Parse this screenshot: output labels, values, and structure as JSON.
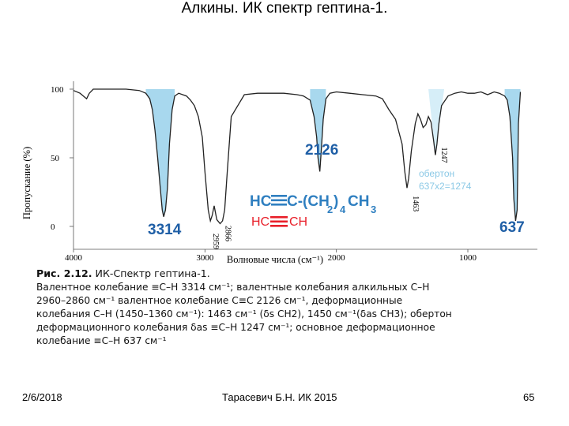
{
  "slide": {
    "title": "Алкины. ИК спектр гептина-1."
  },
  "chart_data": {
    "type": "line",
    "ylabel": "Пропускание (%)",
    "xlabel": "Волновые числа (см⁻¹)",
    "xlim": [
      4000,
      600
    ],
    "ylim": [
      0,
      100
    ],
    "x_ticks": [
      "4000",
      "3000",
      "2000",
      "1000"
    ],
    "y_ticks": [
      "100",
      "50",
      "0"
    ],
    "series": [
      {
        "x": [
          4000,
          3950,
          3900,
          3880,
          3850,
          3800,
          3700,
          3600,
          3500,
          3450,
          3420,
          3400,
          3380,
          3360,
          3340,
          3325,
          3314,
          3300,
          3285,
          3270,
          3250,
          3230,
          3200,
          3170,
          3140,
          3110,
          3080,
          3050,
          3020,
          3000,
          2975,
          2959,
          2945,
          2930,
          2910,
          2885,
          2866,
          2850,
          2830,
          2800,
          2700,
          2600,
          2500,
          2400,
          2300,
          2250,
          2200,
          2170,
          2150,
          2140,
          2126,
          2115,
          2100,
          2080,
          2050,
          2000,
          1900,
          1800,
          1700,
          1650,
          1600,
          1550,
          1500,
          1480,
          1463,
          1450,
          1430,
          1400,
          1380,
          1360,
          1340,
          1320,
          1300,
          1280,
          1260,
          1247,
          1235,
          1220,
          1200,
          1150,
          1100,
          1050,
          1000,
          950,
          900,
          850,
          800,
          760,
          720,
          700,
          680,
          660,
          650,
          637,
          625,
          615,
          600
        ],
        "y": [
          99,
          97,
          93,
          97,
          100,
          100,
          100,
          100,
          99,
          97,
          93,
          85,
          70,
          50,
          28,
          12,
          7,
          12,
          28,
          60,
          85,
          95,
          97,
          96,
          95,
          92,
          88,
          80,
          65,
          40,
          12,
          4,
          8,
          15,
          5,
          2,
          4,
          12,
          40,
          80,
          96,
          97,
          97,
          97,
          96,
          95,
          92,
          80,
          65,
          50,
          40,
          55,
          78,
          93,
          97,
          98,
          97,
          96,
          95,
          93,
          85,
          78,
          60,
          40,
          28,
          35,
          55,
          75,
          82,
          78,
          72,
          74,
          80,
          76,
          62,
          52,
          60,
          75,
          88,
          95,
          97,
          98,
          97,
          97,
          98,
          96,
          98,
          97,
          95,
          92,
          80,
          50,
          20,
          4,
          12,
          75,
          98
        ]
      }
    ],
    "peak_labels": [
      {
        "x": 2959,
        "label": "2959"
      },
      {
        "x": 2866,
        "label": "2866"
      },
      {
        "x": 1463,
        "label": "1463"
      },
      {
        "x": 1247,
        "label": "1247"
      }
    ]
  },
  "annotations": {
    "peak_3314": "3314",
    "peak_2126": "2126",
    "peak_637": "637",
    "overtone": "обертон",
    "overtone_calc": "637x2=1274"
  },
  "formula": {
    "hc": "HC",
    "c_chain": "C-(CH",
    "sub2": "2",
    "paren": ")",
    "sub4": "4",
    "ch3": "CH",
    "sub3": "3",
    "frag_hc": "HC",
    "frag_ch": "CH"
  },
  "caption": {
    "fig_label": "Рис. 2.12.",
    "fig_title": " ИК-Спектр гептина-1.",
    "line1": "Валентное колебание ≡C–H 3314 см⁻¹; валентные колебания алкильных C–H",
    "line2": "2960–2860 см⁻¹                 валентное колебание C≡C 2126 см⁻¹, деформационные",
    "line3": "колебания C–H (1450–1360 см⁻¹): 1463 см⁻¹ (δs CH2), 1450 см⁻¹(δas CH3); обертон",
    "line4": "деформационного колебания δas ≡C–H 1247 см⁻¹; основное деформационное",
    "line5": "колебание ≡C–H 637 см⁻¹"
  },
  "footer": {
    "date": "2/6/2018",
    "author": "Тарасевич Б.Н.  ИК 2015",
    "page": "65"
  },
  "colors": {
    "fill": "#a8d8ee",
    "blue_text": "#1f5fa6",
    "formula_blue": "#2f7fc0",
    "red": "#e8202a",
    "overtone": "#8cc9e6"
  }
}
